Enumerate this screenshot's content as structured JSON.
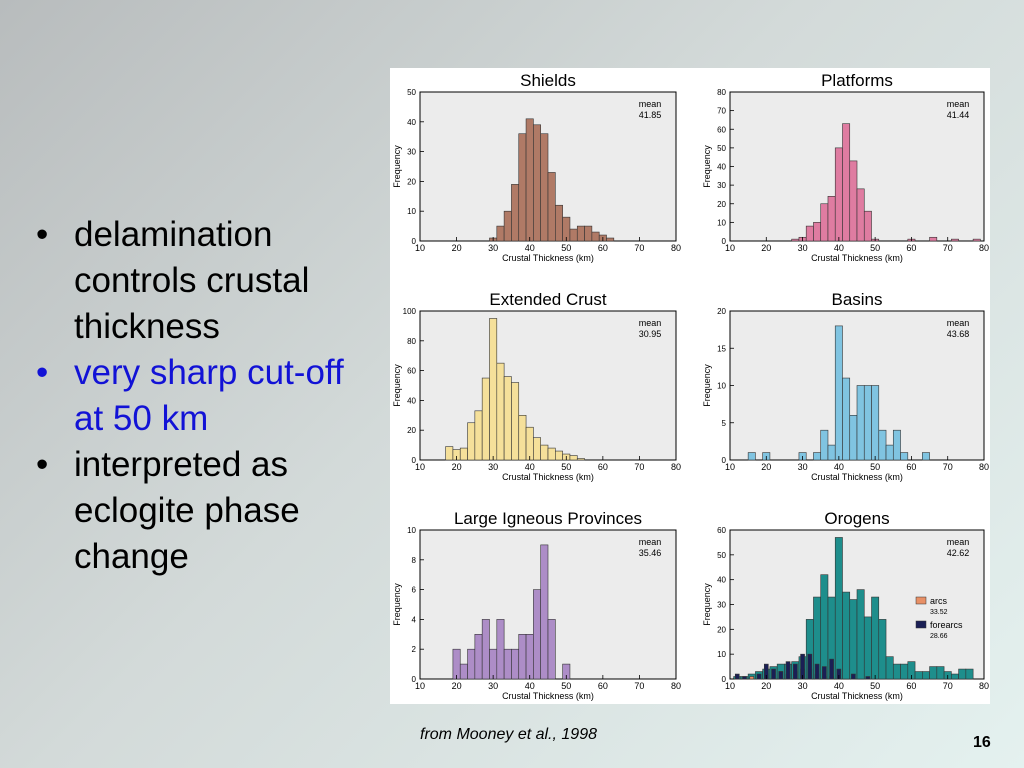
{
  "bullets": [
    {
      "text": "delamination controls crustal thickness",
      "color": "#000000"
    },
    {
      "text": "very sharp cut-off at 50 km",
      "color": "#1212d6"
    },
    {
      "text": "interpreted as eclogite phase change",
      "color": "#000000"
    }
  ],
  "bullet_glyph": "•",
  "caption": "from Mooney et al., 1998",
  "page_number": "16",
  "chart_data": [
    {
      "type": "bar",
      "title": "Shields",
      "xlabel": "Crustal Thickness (km)",
      "ylabel": "Frequency",
      "xlim": [
        10,
        80
      ],
      "ylim": [
        0,
        50
      ],
      "xticks": [
        10,
        20,
        30,
        40,
        50,
        60,
        70,
        80
      ],
      "yticks": [
        0,
        10,
        20,
        30,
        40,
        50
      ],
      "bin_width": 2,
      "color": "#b07a66",
      "grid": false,
      "annotation": {
        "label": "mean",
        "value": "41.85"
      },
      "series": [
        {
          "x": [
            30,
            32,
            34,
            36,
            38,
            40,
            42,
            44,
            46,
            48,
            50,
            52,
            54,
            56,
            58,
            60,
            62
          ],
          "values": [
            1,
            5,
            10,
            19,
            36,
            41,
            39,
            36,
            23,
            12,
            8,
            4,
            5,
            5,
            3,
            2,
            1
          ]
        }
      ]
    },
    {
      "type": "bar",
      "title": "Platforms",
      "xlabel": "Crustal Thickness (km)",
      "ylabel": "Frequency",
      "xlim": [
        10,
        80
      ],
      "ylim": [
        0,
        80
      ],
      "xticks": [
        10,
        20,
        30,
        40,
        50,
        60,
        70,
        80
      ],
      "yticks": [
        0,
        10,
        20,
        30,
        40,
        50,
        60,
        70,
        80
      ],
      "bin_width": 2,
      "color": "#df7ca1",
      "grid": false,
      "annotation": {
        "label": "mean",
        "value": "41.44"
      },
      "series": [
        {
          "x": [
            28,
            30,
            32,
            34,
            36,
            38,
            40,
            42,
            44,
            46,
            48,
            50,
            60,
            66,
            72,
            78
          ],
          "values": [
            1,
            2,
            8,
            10,
            20,
            24,
            50,
            63,
            43,
            28,
            16,
            1,
            1,
            2,
            1,
            1
          ]
        }
      ]
    },
    {
      "type": "bar",
      "title": "Extended Crust",
      "xlabel": "Crustal Thickness (km)",
      "ylabel": "Frequency",
      "xlim": [
        10,
        80
      ],
      "ylim": [
        0,
        100
      ],
      "xticks": [
        10,
        20,
        30,
        40,
        50,
        60,
        70,
        80
      ],
      "yticks": [
        0,
        20,
        40,
        60,
        80,
        100
      ],
      "bin_width": 2,
      "color": "#f5e09a",
      "grid": false,
      "annotation": {
        "label": "mean",
        "value": "30.95"
      },
      "series": [
        {
          "x": [
            18,
            20,
            22,
            24,
            26,
            28,
            30,
            32,
            34,
            36,
            38,
            40,
            42,
            44,
            46,
            48,
            50,
            52,
            54
          ],
          "values": [
            9,
            7,
            8,
            25,
            33,
            55,
            95,
            65,
            56,
            52,
            30,
            22,
            15,
            10,
            8,
            6,
            4,
            3,
            1
          ]
        }
      ]
    },
    {
      "type": "bar",
      "title": "Basins",
      "xlabel": "Crustal Thickness (km)",
      "ylabel": "Frequency",
      "xlim": [
        10,
        80
      ],
      "ylim": [
        0,
        20
      ],
      "xticks": [
        10,
        20,
        30,
        40,
        50,
        60,
        70,
        80
      ],
      "yticks": [
        0,
        5,
        10,
        15,
        20
      ],
      "bin_width": 2,
      "color": "#80c4e1",
      "grid": false,
      "annotation": {
        "label": "mean",
        "value": "43.68"
      },
      "series": [
        {
          "x": [
            16,
            20,
            30,
            34,
            36,
            38,
            40,
            42,
            44,
            46,
            48,
            50,
            52,
            54,
            56,
            58,
            64
          ],
          "values": [
            1,
            1,
            1,
            1,
            4,
            2,
            18,
            11,
            6,
            10,
            10,
            10,
            4,
            2,
            4,
            1,
            1
          ]
        }
      ]
    },
    {
      "type": "bar",
      "title": "Large Igneous Provinces",
      "xlabel": "Crustal Thickness (km)",
      "ylabel": "Frequency",
      "xlim": [
        10,
        80
      ],
      "ylim": [
        0,
        10
      ],
      "xticks": [
        10,
        20,
        30,
        40,
        50,
        60,
        70,
        80
      ],
      "yticks": [
        0,
        2,
        4,
        6,
        8,
        10
      ],
      "bin_width": 2,
      "color": "#ad8dc7",
      "grid": false,
      "annotation": {
        "label": "mean",
        "value": "35.46"
      },
      "series": [
        {
          "x": [
            20,
            22,
            24,
            26,
            28,
            30,
            32,
            34,
            36,
            38,
            40,
            42,
            44,
            46,
            50
          ],
          "values": [
            2,
            1,
            2,
            3,
            4,
            2,
            4,
            2,
            2,
            3,
            3,
            6,
            9,
            4,
            1
          ]
        }
      ]
    },
    {
      "type": "bar",
      "title": "Orogens",
      "xlabel": "Crustal Thickness (km)",
      "ylabel": "Frequency",
      "xlim": [
        10,
        80
      ],
      "ylim": [
        0,
        60
      ],
      "xticks": [
        10,
        20,
        30,
        40,
        50,
        60,
        70,
        80
      ],
      "yticks": [
        0,
        10,
        20,
        30,
        40,
        50,
        60
      ],
      "bin_width": 2,
      "legend_position": "right",
      "annotation": {
        "label": "mean",
        "value": "42.62"
      },
      "series": [
        {
          "name": "",
          "color": "#1e8e8c",
          "x": [
            12,
            14,
            16,
            18,
            20,
            22,
            24,
            26,
            28,
            30,
            32,
            34,
            36,
            38,
            40,
            42,
            44,
            46,
            48,
            50,
            52,
            54,
            56,
            58,
            60,
            62,
            64,
            66,
            68,
            70,
            72,
            74,
            76
          ],
          "values": [
            1,
            1,
            2,
            3,
            4,
            5,
            6,
            6,
            7,
            9,
            24,
            33,
            42,
            33,
            57,
            35,
            32,
            36,
            25,
            33,
            24,
            9,
            6,
            6,
            7,
            3,
            3,
            5,
            5,
            3,
            2,
            4,
            4
          ]
        },
        {
          "name": "arcs",
          "mean": "33.52",
          "color": "#e89066",
          "x": [
            16,
            20,
            24,
            26,
            28,
            30,
            32,
            34,
            36,
            38
          ],
          "values": [
            1,
            2,
            3,
            2,
            3,
            4,
            4,
            2,
            1,
            1
          ]
        },
        {
          "name": "forearcs",
          "mean": "28.66",
          "color": "#1a1f55",
          "x": [
            12,
            14,
            18,
            20,
            22,
            24,
            26,
            28,
            30,
            32,
            34,
            36,
            38,
            40,
            44,
            48
          ],
          "values": [
            2,
            1,
            2,
            6,
            4,
            3,
            7,
            6,
            10,
            10,
            6,
            5,
            8,
            4,
            2,
            1
          ]
        }
      ]
    }
  ]
}
